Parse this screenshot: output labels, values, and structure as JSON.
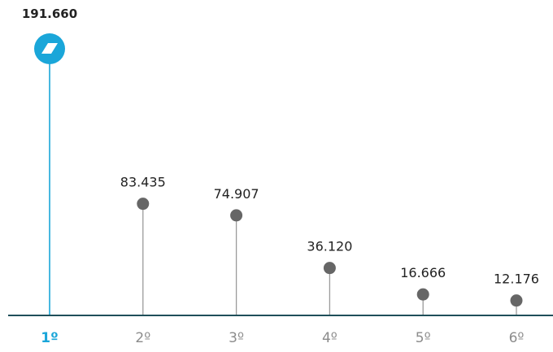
{
  "chart_data": {
    "type": "lollipop",
    "categories": [
      "1º",
      "2º",
      "3º",
      "4º",
      "5º",
      "6º"
    ],
    "values": [
      191660,
      83435,
      74907,
      36120,
      16666,
      12176
    ],
    "value_labels": [
      "191.660",
      "83.435",
      "74.907",
      "36.120",
      "16.666",
      "12.176"
    ],
    "ylim": [
      0,
      200000
    ],
    "highlight_index": 0,
    "highlight_icon": "slash-badge-icon",
    "grid": false,
    "title": "",
    "xlabel": "",
    "ylabel": ""
  },
  "colors": {
    "highlight": "#1aa6d9",
    "marker": "#666666",
    "stem": "#9a9a9a",
    "axis": "#1f4f5a",
    "label_text": "#222222",
    "tick_text": "#8c8c8c",
    "highlight_tick_text": "#1aa6d9"
  }
}
